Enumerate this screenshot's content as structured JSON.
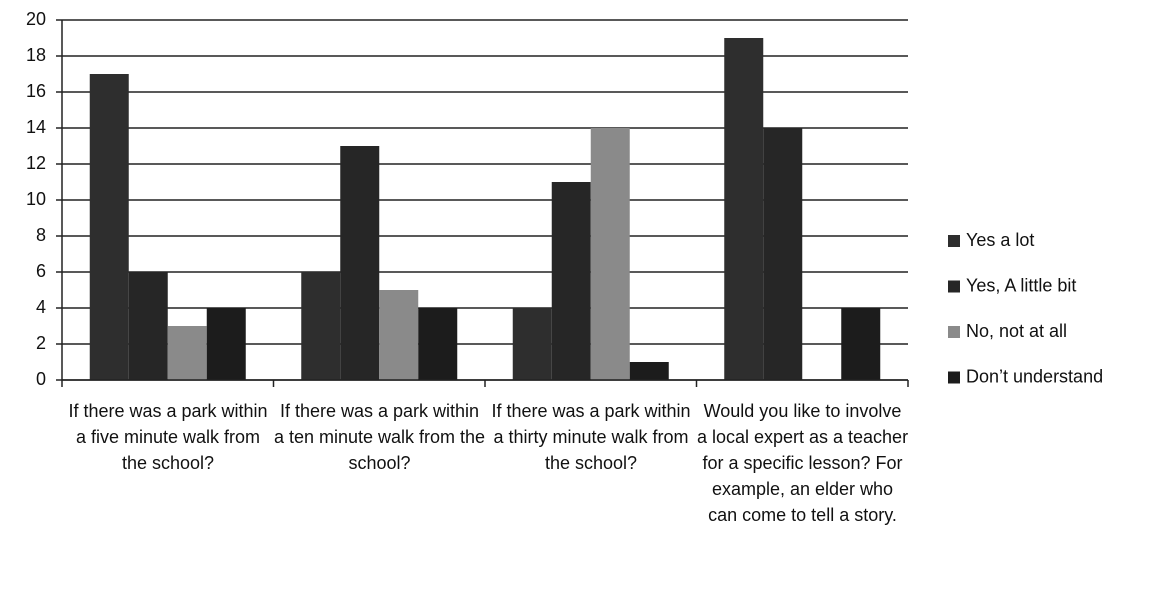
{
  "chart_data": {
    "type": "bar",
    "categories": [
      "If there was a park within a five minute walk from the school?",
      "If there was a park within a ten minute walk from the school?",
      "If there was a park within a thirty minute walk from the school?",
      "Would you like to involve a local expert as a teacher for a specific lesson? For example, an elder who can come to tell a story."
    ],
    "series": [
      {
        "name": "Yes a lot",
        "color": "#2e2e2e",
        "values": [
          17,
          6,
          4,
          19
        ]
      },
      {
        "name": "Yes, A little bit",
        "color": "#262626",
        "values": [
          6,
          13,
          11,
          14
        ]
      },
      {
        "name": "No, not at all",
        "color": "#8a8a8a",
        "values": [
          3,
          5,
          14,
          0
        ]
      },
      {
        "name": "Don’t understand",
        "color": "#1c1c1c",
        "values": [
          4,
          4,
          1,
          4
        ]
      }
    ],
    "ylim": [
      0,
      20
    ],
    "yticks": [
      0,
      2,
      4,
      6,
      8,
      10,
      12,
      14,
      16,
      18,
      20
    ],
    "grid": true,
    "legend": "right"
  }
}
